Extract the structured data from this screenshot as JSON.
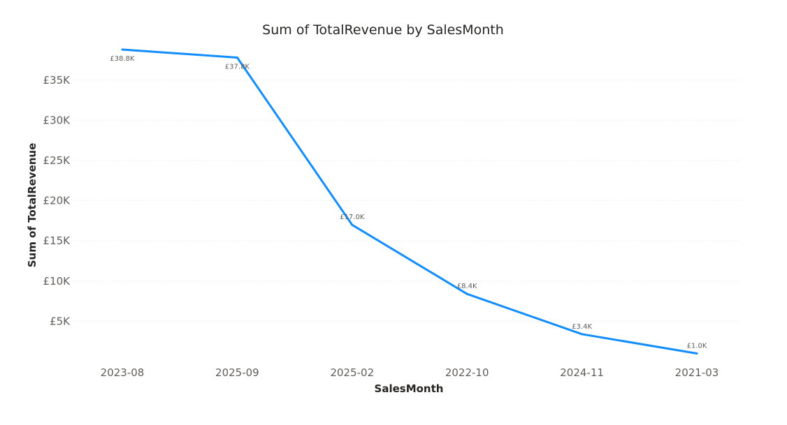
{
  "chart_data": {
    "type": "line",
    "title": "Sum of TotalRevenue by SalesMonth",
    "xlabel": "SalesMonth",
    "ylabel": "Sum of TotalRevenue",
    "categories": [
      "2023-08",
      "2025-09",
      "2025-02",
      "2022-10",
      "2024-11",
      "2021-03"
    ],
    "series": [
      {
        "values": [
          38800,
          37800,
          17000,
          8400,
          3400,
          1000
        ],
        "data_labels": [
          "£38.8K",
          "£37.8K",
          "£17.0K",
          "£8.4K",
          "£3.4K",
          "£1.0K"
        ]
      }
    ],
    "y_ticks": [
      5000,
      10000,
      15000,
      20000,
      25000,
      30000,
      35000
    ],
    "y_tick_labels": [
      "£5K",
      "£10K",
      "£15K",
      "£20K",
      "£25K",
      "£30K",
      "£35K"
    ],
    "ylim": [
      0,
      40000
    ],
    "grid": true,
    "legend": "none",
    "line_color": "#118DFF",
    "grid_color": "#E1DFDD"
  }
}
